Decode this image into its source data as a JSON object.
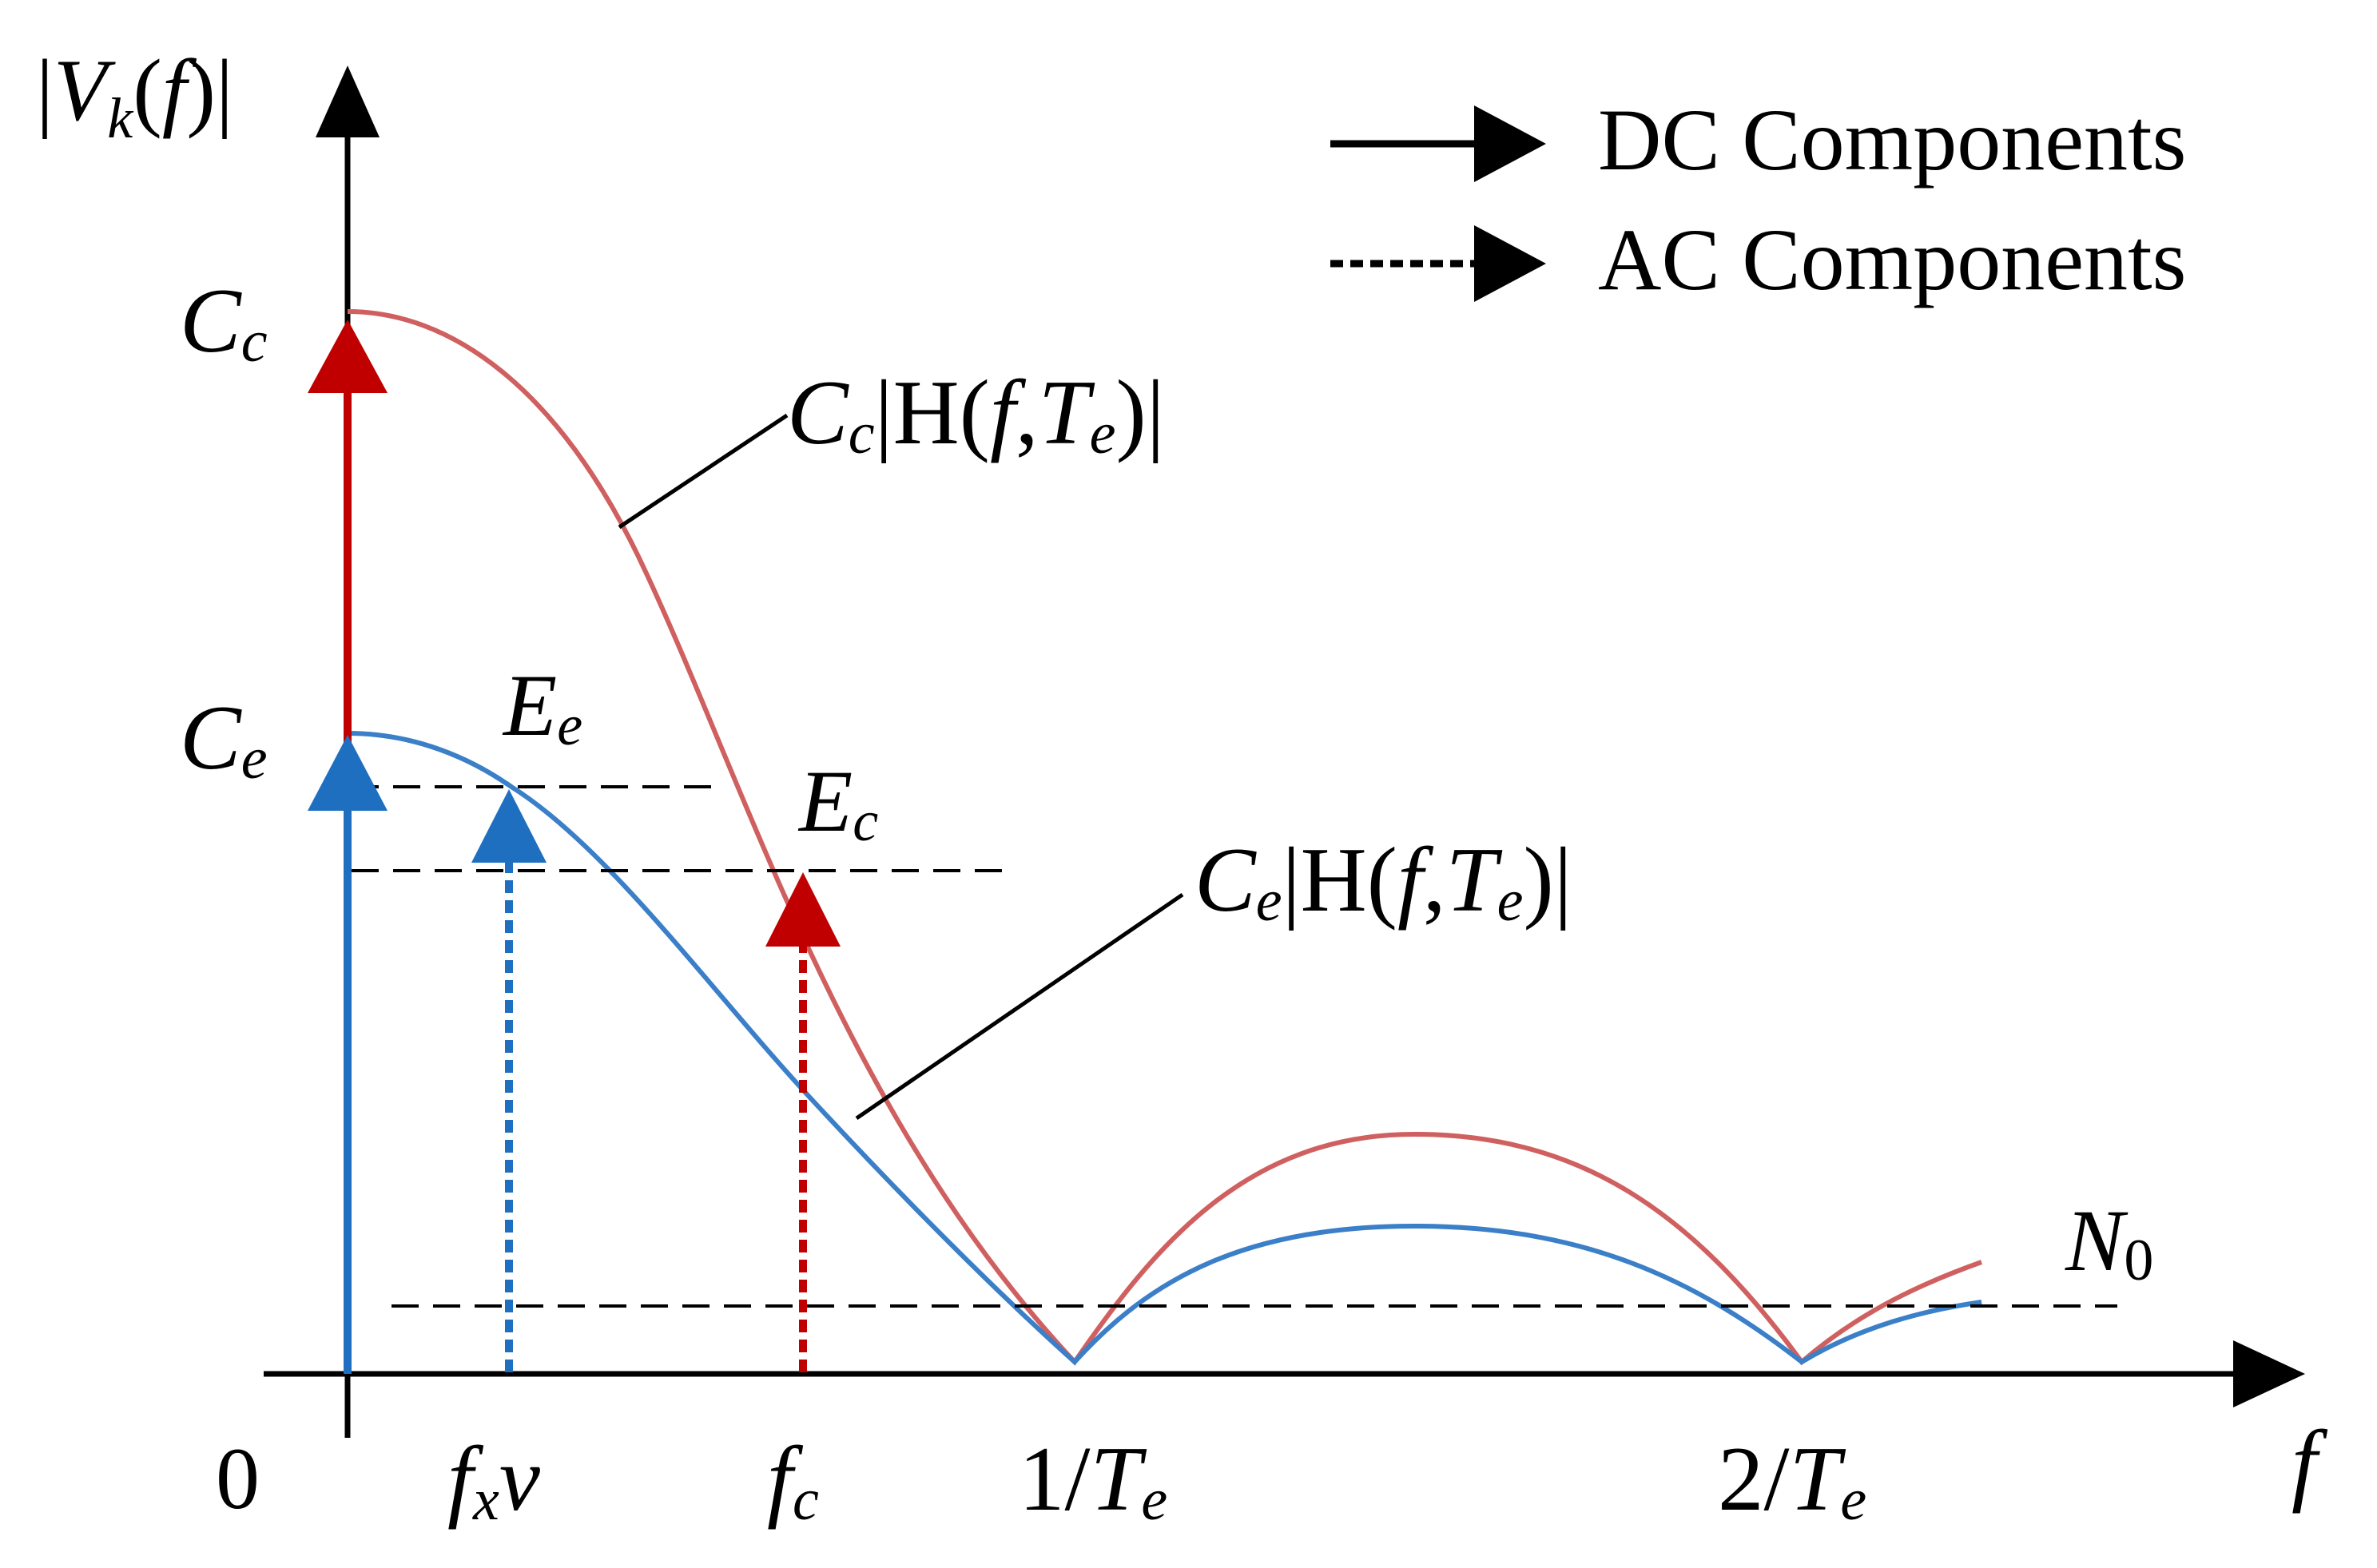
{
  "labels": {
    "y_axis": {
      "bar_left": "|",
      "V": "V",
      "k": "k",
      "paren_open": "(",
      "f": "f",
      "paren_close": ")",
      "bar_right": "|"
    },
    "x_axis": "f",
    "origin": "0",
    "cc": {
      "main": "C",
      "sub": "c"
    },
    "ce": {
      "main": "C",
      "sub": "e"
    },
    "ee": {
      "main": "E",
      "sub": "e"
    },
    "ec": {
      "main": "E",
      "sub": "c"
    },
    "n0": {
      "main": "N",
      "sub": "0"
    },
    "curve_red": {
      "C": "C",
      "c": "c",
      "mid": "|H(",
      "f": "f",
      "comma": ",",
      "T": "T",
      "e": "e",
      "end": ")|"
    },
    "curve_blue": {
      "C": "C",
      "c": "e",
      "mid": "|H(",
      "f": "f",
      "comma": ",",
      "T": "T",
      "e": "e",
      "end": ")|"
    },
    "ticks": {
      "fxv": {
        "f": "f",
        "x": "x",
        "v": "v"
      },
      "fc": {
        "f": "f",
        "c": "c"
      },
      "one_te": {
        "num": "1/",
        "T": "T",
        "e": "e"
      },
      "two_te": {
        "num": "2/",
        "T": "T",
        "e": "e"
      }
    }
  },
  "legend": {
    "dc": "DC Components",
    "ac": "AC Components"
  },
  "colors": {
    "red": "#c00000",
    "blue": "#1f6fc1",
    "red_curve": "#d06060",
    "blue_curve": "#3a7fc8",
    "black": "#000000"
  }
}
